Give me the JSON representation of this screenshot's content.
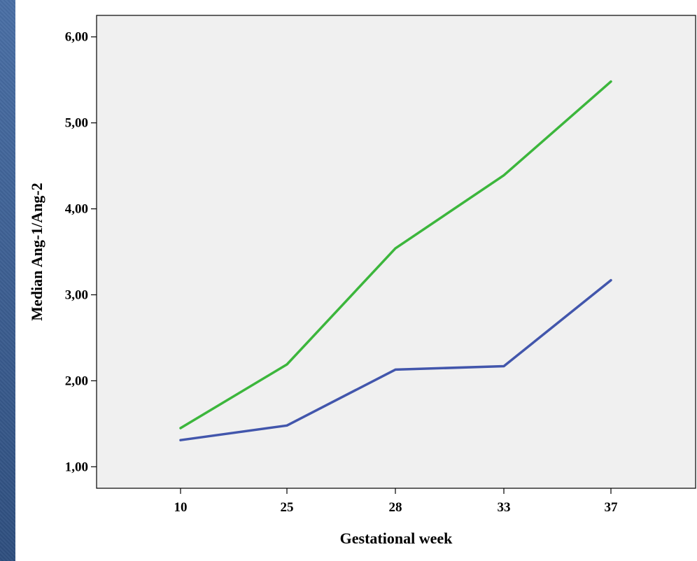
{
  "chart_data": {
    "type": "line",
    "categories": [
      "10",
      "25",
      "28",
      "33",
      "37"
    ],
    "series": [
      {
        "values": [
          1.45,
          2.19,
          3.54,
          4.39,
          5.48
        ],
        "color": "#3cb63c"
      },
      {
        "values": [
          1.31,
          1.48,
          2.13,
          2.17,
          3.17
        ],
        "color": "#4256ac"
      }
    ],
    "title": "",
    "xlabel": "Gestational week",
    "ylabel": "Median Ang-1/Ang-2",
    "ylim": [
      0.75,
      6.25
    ],
    "yticks": [
      "1,00",
      "2,00",
      "3,00",
      "4,00",
      "5,00",
      "6,00"
    ],
    "grid": false,
    "plot_background": "#f0f0f0"
  }
}
